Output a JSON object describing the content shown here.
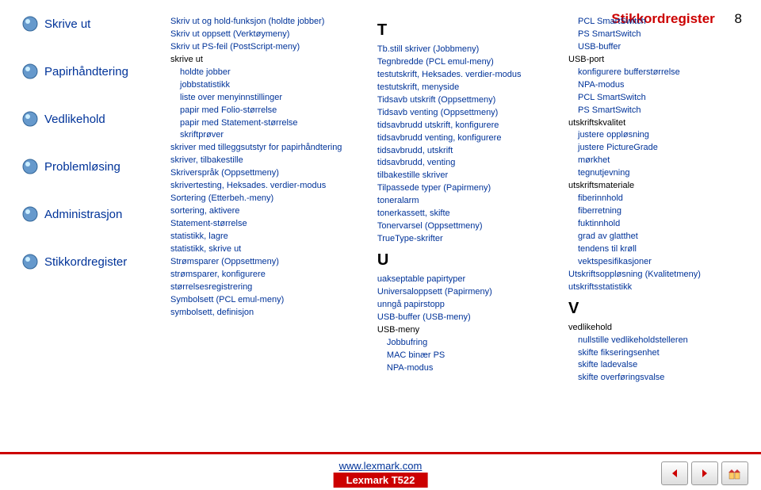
{
  "header": {
    "title": "Stikkordregister",
    "page": "8"
  },
  "sidebar": {
    "items": [
      {
        "label": "Skrive ut"
      },
      {
        "label": "Papirhåndtering"
      },
      {
        "label": "Vedlikehold"
      },
      {
        "label": "Problemløsing"
      },
      {
        "label": "Administrasjon"
      },
      {
        "label": "Stikkordregister"
      }
    ]
  },
  "col1": [
    {
      "t": "Skriv ut og hold-funksjon (holdte jobber)",
      "c": "link"
    },
    {
      "t": "Skriv ut oppsett (Verktøymeny)",
      "c": "link"
    },
    {
      "t": "Skriv ut PS-feil (PostScript-meny)",
      "c": "link"
    },
    {
      "t": "skrive ut"
    },
    {
      "t": "holdte jobber",
      "c": "link sub1"
    },
    {
      "t": "jobbstatistikk",
      "c": "link sub1"
    },
    {
      "t": "liste over menyinnstillinger",
      "c": "link sub1"
    },
    {
      "t": "papir med Folio-størrelse",
      "c": "link sub1"
    },
    {
      "t": "papir med Statement-størrelse",
      "c": "link sub1"
    },
    {
      "t": "skriftprøver",
      "c": "link sub1"
    },
    {
      "t": "skriver med tilleggsutstyr for papirhåndtering",
      "c": "link"
    },
    {
      "t": "skriver, tilbakestille",
      "c": "link"
    },
    {
      "t": "Skriverspråk (Oppsettmeny)",
      "c": "link"
    },
    {
      "t": "skrivertesting, Heksades. verdier-modus",
      "c": "link"
    },
    {
      "t": "Sortering (Etterbeh.-meny)",
      "c": "link"
    },
    {
      "t": "sortering, aktivere",
      "c": "link"
    },
    {
      "t": "Statement-størrelse",
      "c": "link"
    },
    {
      "t": "statistikk, lagre",
      "c": "link"
    },
    {
      "t": "statistikk, skrive ut",
      "c": "link"
    },
    {
      "t": "Strømsparer (Oppsettmeny)",
      "c": "link"
    },
    {
      "t": "strømsparer, konfigurere",
      "c": "link"
    },
    {
      "t": "størrelsesregistrering",
      "c": "link"
    },
    {
      "t": "Symbolsett (PCL emul-meny)",
      "c": "link"
    },
    {
      "t": "symbolsett, definisjon",
      "c": "link"
    }
  ],
  "col2": [
    {
      "t": "T",
      "c": "letter"
    },
    {
      "t": "Tb.still skriver (Jobbmeny)",
      "c": "link"
    },
    {
      "t": "Tegnbredde (PCL emul-meny)",
      "c": "link"
    },
    {
      "t": "testutskrift, Heksades. verdier-modus",
      "c": "link"
    },
    {
      "t": "testutskrift, menyside",
      "c": "link"
    },
    {
      "t": "Tidsavb utskrift (Oppsettmeny)",
      "c": "link"
    },
    {
      "t": "Tidsavb venting (Oppsettmeny)",
      "c": "link"
    },
    {
      "t": "tidsavbrudd utskrift, konfigurere",
      "c": "link"
    },
    {
      "t": "tidsavbrudd venting, konfigurere",
      "c": "link"
    },
    {
      "t": "tidsavbrudd, utskrift",
      "c": "link"
    },
    {
      "t": "tidsavbrudd, venting",
      "c": "link"
    },
    {
      "t": "tilbakestille skriver",
      "c": "link"
    },
    {
      "t": "Tilpassede typer (Papirmeny)",
      "c": "link"
    },
    {
      "t": "toneralarm",
      "c": "link"
    },
    {
      "t": "tonerkassett, skifte",
      "c": "link"
    },
    {
      "t": "Tonervarsel (Oppsettmeny)",
      "c": "link"
    },
    {
      "t": "TrueType-skrifter",
      "c": "link"
    },
    {
      "t": "U",
      "c": "letter"
    },
    {
      "t": "uakseptable papirtyper",
      "c": "link"
    },
    {
      "t": "Universaloppsett (Papirmeny)",
      "c": "link"
    },
    {
      "t": "unngå papirstopp",
      "c": "link"
    },
    {
      "t": "USB-buffer (USB-meny)",
      "c": "link"
    },
    {
      "t": "USB-meny"
    },
    {
      "t": "Jobbufring",
      "c": "link sub1"
    },
    {
      "t": "MAC binær PS",
      "c": "link sub1"
    },
    {
      "t": "NPA-modus",
      "c": "link sub1"
    }
  ],
  "col3": [
    {
      "t": "PCL SmartSwitch",
      "c": "link sub1"
    },
    {
      "t": "PS SmartSwitch",
      "c": "link sub1"
    },
    {
      "t": "USB-buffer",
      "c": "link sub1"
    },
    {
      "t": "USB-port"
    },
    {
      "t": "konfigurere bufferstørrelse",
      "c": "link sub1"
    },
    {
      "t": "NPA-modus",
      "c": "link sub1"
    },
    {
      "t": "PCL SmartSwitch",
      "c": "link sub1"
    },
    {
      "t": "PS SmartSwitch",
      "c": "link sub1"
    },
    {
      "t": "utskriftskvalitet"
    },
    {
      "t": "justere oppløsning",
      "c": "link sub1"
    },
    {
      "t": "justere PictureGrade",
      "c": "link sub1"
    },
    {
      "t": "mørkhet",
      "c": "link sub1"
    },
    {
      "t": "tegnutjevning",
      "c": "link sub1"
    },
    {
      "t": "utskriftsmateriale"
    },
    {
      "t": "fiberinnhold",
      "c": "link sub1"
    },
    {
      "t": "fiberretning",
      "c": "link sub1"
    },
    {
      "t": "fuktinnhold",
      "c": "link sub1"
    },
    {
      "t": "grad av glatthet",
      "c": "link sub1"
    },
    {
      "t": "tendens til krøll",
      "c": "link sub1"
    },
    {
      "t": "vektspesifikasjoner",
      "c": "link sub1"
    },
    {
      "t": "Utskriftsoppløsning (Kvalitetmeny)",
      "c": "link"
    },
    {
      "t": "utskriftsstatistikk",
      "c": "link"
    },
    {
      "t": "V",
      "c": "letter"
    },
    {
      "t": "vedlikehold"
    },
    {
      "t": "nullstille vedlikeholdstelleren",
      "c": "link sub1"
    },
    {
      "t": "skifte fikseringsenhet",
      "c": "link sub1"
    },
    {
      "t": "skifte ladevalse",
      "c": "link sub1"
    },
    {
      "t": "skifte overføringsvalse",
      "c": "link sub1"
    }
  ],
  "footer": {
    "url": "www.lexmark.com",
    "model": "Lexmark T522"
  },
  "icons": {
    "bullet_stroke": "#336699",
    "bullet_fill": "#6699cc",
    "bullet_highlight": "#cceeff"
  }
}
